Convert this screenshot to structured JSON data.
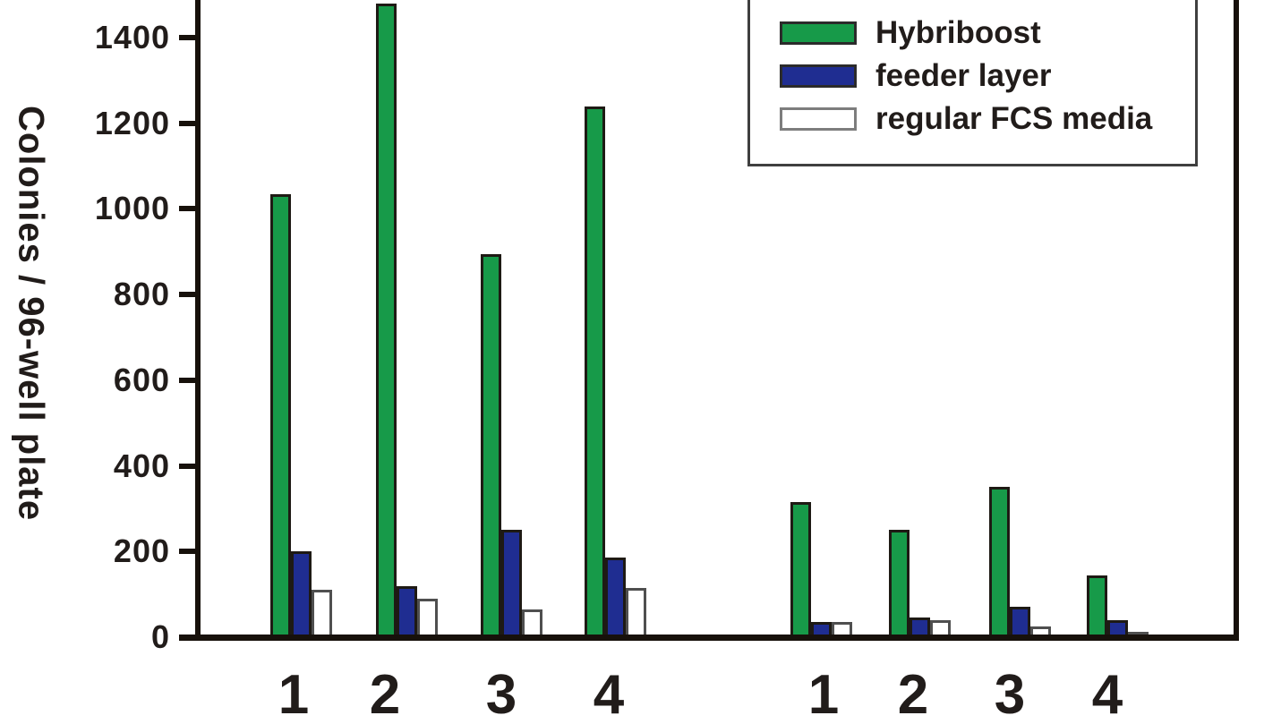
{
  "chart_data": {
    "type": "bar",
    "title": "",
    "xlabel": "",
    "ylabel": "Colonies / 96-well plate",
    "categories": [
      "1",
      "2",
      "3",
      "4",
      "1",
      "2",
      "3",
      "4"
    ],
    "cluster_split_after_index": 3,
    "series": [
      {
        "name": "Hybriboost",
        "color": "#179a49",
        "outline": "#1e1a14",
        "values": [
          1035,
          1480,
          895,
          1240,
          315,
          250,
          350,
          145
        ]
      },
      {
        "name": "feeder layer",
        "color": "#1f2d91",
        "outline": "#1e1a14",
        "values": [
          200,
          120,
          250,
          185,
          35,
          45,
          70,
          40
        ]
      },
      {
        "name": "regular FCS media",
        "color": "#ffffff",
        "outline": "#4f4f4f",
        "values": [
          110,
          90,
          65,
          115,
          35,
          40,
          25,
          12
        ]
      }
    ],
    "yticks": [
      0,
      200,
      400,
      600,
      800,
      1000,
      1200,
      1400
    ],
    "ylim": [
      0,
      1490
    ],
    "grid": false,
    "legend_position": "top-right"
  },
  "colors": {
    "axis": "#17110b",
    "text": "#211c1a",
    "legend_border": "#3f3f3f",
    "white_swatch_border": "#7d7d7d",
    "background": "#ffffff"
  }
}
